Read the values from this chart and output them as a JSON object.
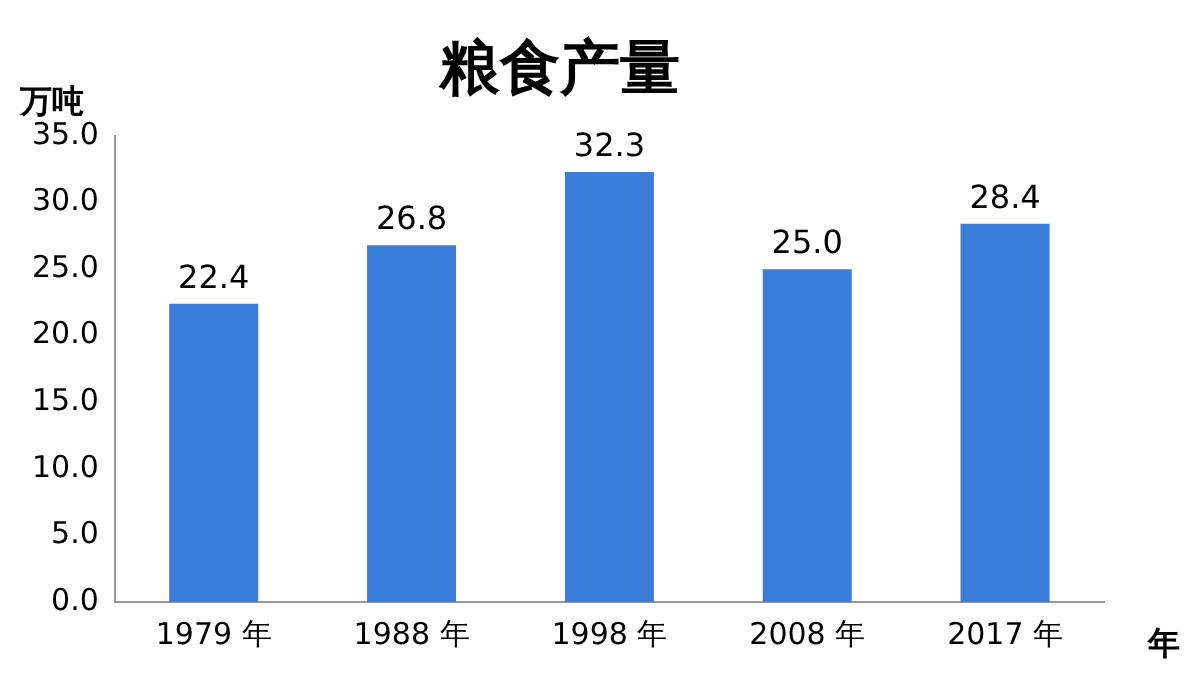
{
  "chart_data": {
    "type": "bar",
    "title": "粮食产量",
    "ylabel": "万吨",
    "xlabel": "年",
    "categories": [
      "1979 年",
      "1988 年",
      "1998 年",
      "2008 年",
      "2017 年"
    ],
    "values": [
      22.4,
      26.8,
      32.3,
      25.0,
      28.4
    ],
    "color": "#3b7ddb",
    "ylim": [
      0,
      35
    ],
    "yticks": [
      {
        "value": 0,
        "label": "0.0"
      },
      {
        "value": 5,
        "label": "5.0"
      },
      {
        "value": 10,
        "label": "10.0"
      },
      {
        "value": 15,
        "label": "15.0"
      },
      {
        "value": 20,
        "label": "20.0"
      },
      {
        "value": 25,
        "label": "25.0"
      },
      {
        "value": 30,
        "label": "30.0"
      },
      {
        "value": 35,
        "label": "35.0"
      }
    ],
    "value_labels": [
      "22.4",
      "26.8",
      "32.3",
      "25.0",
      "28.4"
    ],
    "grid": false,
    "legend": false
  }
}
